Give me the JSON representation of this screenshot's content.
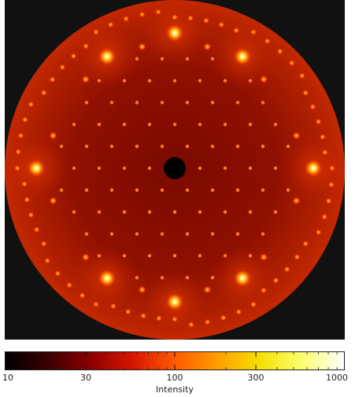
{
  "colorbar": {
    "label": "Intensity",
    "scale": "log",
    "range": [
      10,
      1000
    ],
    "ticks": [
      {
        "value": 10,
        "label": "10"
      },
      {
        "value": 30,
        "label": "30"
      },
      {
        "value": 100,
        "label": "100"
      },
      {
        "value": 300,
        "label": "300"
      },
      {
        "value": 1000,
        "label": "1000"
      }
    ],
    "colormap": [
      "#000000",
      "#3a0000",
      "#8a0000",
      "#d61500",
      "#ff5a00",
      "#ff9d00",
      "#f5e000",
      "#fbff6e",
      "#ffffff"
    ]
  },
  "pattern": {
    "background_color": "#111111",
    "disk_color": "#8f0f00",
    "beam_stop_color": "#000000"
  }
}
